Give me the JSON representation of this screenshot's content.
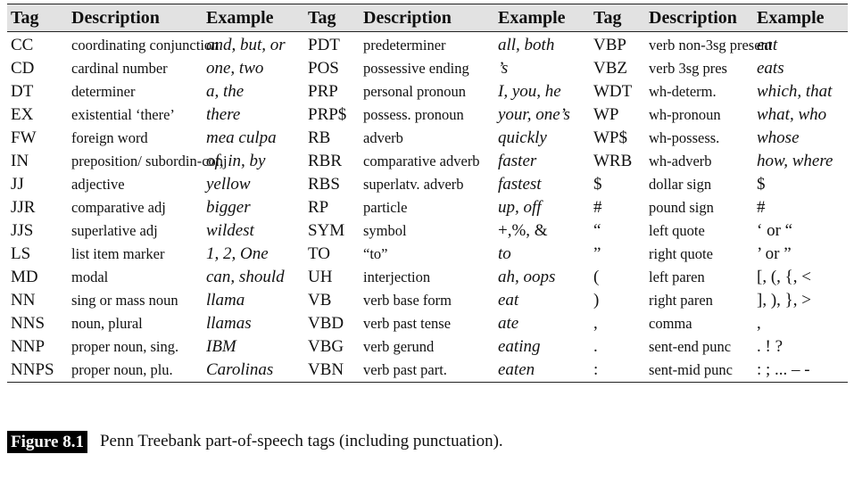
{
  "table": {
    "headers": [
      "Tag",
      "Description",
      "Example",
      "Tag",
      "Description",
      "Example",
      "Tag",
      "Description",
      "Example"
    ],
    "rows": [
      [
        [
          "CC",
          "coordinating conjunction",
          "and, but, or"
        ],
        [
          "PDT",
          "predeterminer",
          "all, both"
        ],
        [
          "VBP",
          "verb non-3sg present",
          "eat"
        ]
      ],
      [
        [
          "CD",
          "cardinal number",
          "one, two"
        ],
        [
          "POS",
          "possessive ending",
          "’s"
        ],
        [
          "VBZ",
          "verb 3sg pres",
          "eats"
        ]
      ],
      [
        [
          "DT",
          "determiner",
          "a, the"
        ],
        [
          "PRP",
          "personal pronoun",
          "I, you, he"
        ],
        [
          "WDT",
          "wh-determ.",
          "which, that"
        ]
      ],
      [
        [
          "EX",
          "existential ‘there’",
          "there"
        ],
        [
          "PRP$",
          "possess. pronoun",
          "your, one’s"
        ],
        [
          "WP",
          "wh-pronoun",
          "what, who"
        ]
      ],
      [
        [
          "FW",
          "foreign word",
          "mea culpa"
        ],
        [
          "RB",
          "adverb",
          "quickly"
        ],
        [
          "WP$",
          "wh-possess.",
          "whose"
        ]
      ],
      [
        [
          "IN",
          "preposition/ subordin-conj",
          "of, in, by"
        ],
        [
          "RBR",
          "comparative adverb",
          "faster"
        ],
        [
          "WRB",
          "wh-adverb",
          "how, where"
        ]
      ],
      [
        [
          "JJ",
          "adjective",
          "yellow"
        ],
        [
          "RBS",
          "superlatv. adverb",
          "fastest"
        ],
        [
          "$",
          "dollar sign",
          "$"
        ]
      ],
      [
        [
          "JJR",
          "comparative adj",
          "bigger"
        ],
        [
          "RP",
          "particle",
          "up, off"
        ],
        [
          "#",
          "pound sign",
          "#"
        ]
      ],
      [
        [
          "JJS",
          "superlative adj",
          "wildest"
        ],
        [
          "SYM",
          "symbol",
          "+,%, &"
        ],
        [
          "“",
          "left quote",
          "‘ or “"
        ]
      ],
      [
        [
          "LS",
          "list item marker",
          "1, 2, One"
        ],
        [
          "TO",
          "“to”",
          "to"
        ],
        [
          "”",
          "right quote",
          "’ or ”"
        ]
      ],
      [
        [
          "MD",
          "modal",
          "can, should"
        ],
        [
          "UH",
          "interjection",
          "ah, oops"
        ],
        [
          "(",
          "left paren",
          "[, (, {, <"
        ]
      ],
      [
        [
          "NN",
          "sing or mass noun",
          "llama"
        ],
        [
          "VB",
          "verb base form",
          "eat"
        ],
        [
          ")",
          "right paren",
          "], ), }, >"
        ]
      ],
      [
        [
          "NNS",
          "noun, plural",
          "llamas"
        ],
        [
          "VBD",
          "verb past tense",
          "ate"
        ],
        [
          ",",
          "comma",
          ","
        ]
      ],
      [
        [
          "NNP",
          "proper noun, sing.",
          "IBM"
        ],
        [
          "VBG",
          "verb gerund",
          "eating"
        ],
        [
          ".",
          "sent-end punc",
          ". ! ?"
        ]
      ],
      [
        [
          "NNPS",
          "proper noun, plu.",
          "Carolinas"
        ],
        [
          "VBN",
          "verb past part.",
          "eaten"
        ],
        [
          ":",
          "sent-mid punc",
          ": ; ... – -"
        ]
      ]
    ]
  },
  "caption": {
    "label": "Figure 8.1",
    "text": "Penn Treebank part-of-speech tags (including punctuation)."
  }
}
